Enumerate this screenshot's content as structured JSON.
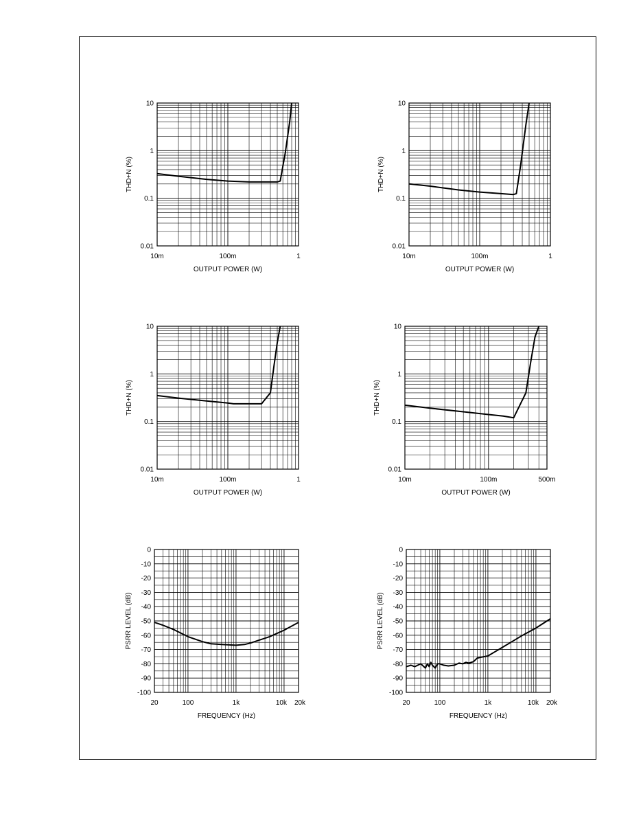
{
  "chart_data": [
    {
      "type": "line",
      "xlabel": "OUTPUT POWER (W)",
      "ylabel": "THD+N (%)",
      "x_scale": "log",
      "y_scale": "log",
      "xlim": [
        0.01,
        1
      ],
      "ylim": [
        0.01,
        10
      ],
      "x_ticks": [
        {
          "v": 0.01,
          "label": "10m"
        },
        {
          "v": 0.1,
          "label": "100m"
        },
        {
          "v": 1,
          "label": "1"
        }
      ],
      "y_ticks": [
        {
          "v": 0.01,
          "label": "0.01"
        },
        {
          "v": 0.1,
          "label": "0.1"
        },
        {
          "v": 1,
          "label": "1"
        },
        {
          "v": 10,
          "label": "10"
        }
      ],
      "grid": true,
      "series": [
        {
          "x": [
            0.01,
            0.02,
            0.05,
            0.1,
            0.2,
            0.3,
            0.5,
            0.55,
            0.65,
            0.75,
            0.8
          ],
          "y": [
            0.33,
            0.29,
            0.25,
            0.23,
            0.22,
            0.22,
            0.22,
            0.23,
            0.9,
            4.0,
            10
          ]
        }
      ]
    },
    {
      "type": "line",
      "xlabel": "OUTPUT POWER (W)",
      "ylabel": "THD+N (%)",
      "x_scale": "log",
      "y_scale": "log",
      "xlim": [
        0.01,
        1
      ],
      "ylim": [
        0.01,
        10
      ],
      "x_ticks": [
        {
          "v": 0.01,
          "label": "10m"
        },
        {
          "v": 0.1,
          "label": "100m"
        },
        {
          "v": 1,
          "label": "1"
        }
      ],
      "y_ticks": [
        {
          "v": 0.01,
          "label": "0.01"
        },
        {
          "v": 0.1,
          "label": "0.1"
        },
        {
          "v": 1,
          "label": "1"
        },
        {
          "v": 10,
          "label": "10"
        }
      ],
      "grid": true,
      "series": [
        {
          "x": [
            0.01,
            0.02,
            0.05,
            0.1,
            0.2,
            0.3,
            0.33,
            0.38,
            0.45,
            0.5
          ],
          "y": [
            0.2,
            0.18,
            0.15,
            0.135,
            0.125,
            0.12,
            0.125,
            0.5,
            3.5,
            10
          ]
        }
      ]
    },
    {
      "type": "line",
      "xlabel": "OUTPUT POWER (W)",
      "ylabel": "THD+N (%)",
      "x_scale": "log",
      "y_scale": "log",
      "xlim": [
        0.01,
        1
      ],
      "ylim": [
        0.01,
        10
      ],
      "x_ticks": [
        {
          "v": 0.01,
          "label": "10m"
        },
        {
          "v": 0.1,
          "label": "100m"
        },
        {
          "v": 1,
          "label": "1"
        }
      ],
      "y_ticks": [
        {
          "v": 0.01,
          "label": "0.01"
        },
        {
          "v": 0.1,
          "label": "0.1"
        },
        {
          "v": 1,
          "label": "1"
        },
        {
          "v": 10,
          "label": "10"
        }
      ],
      "grid": true,
      "series": [
        {
          "x": [
            0.01,
            0.02,
            0.05,
            0.1,
            0.12,
            0.2,
            0.3,
            0.4,
            0.45,
            0.5,
            0.55
          ],
          "y": [
            0.35,
            0.31,
            0.27,
            0.245,
            0.235,
            0.235,
            0.235,
            0.4,
            1.5,
            4.5,
            10
          ]
        }
      ]
    },
    {
      "type": "line",
      "xlabel": "OUTPUT POWER (W)",
      "ylabel": "THD+N (%)",
      "x_scale": "log",
      "y_scale": "log",
      "xlim": [
        0.01,
        0.5
      ],
      "ylim": [
        0.01,
        10
      ],
      "x_ticks": [
        {
          "v": 0.01,
          "label": "10m"
        },
        {
          "v": 0.1,
          "label": "100m"
        },
        {
          "v": 0.5,
          "label": "500m"
        }
      ],
      "y_ticks": [
        {
          "v": 0.01,
          "label": "0.01"
        },
        {
          "v": 0.1,
          "label": "0.1"
        },
        {
          "v": 1,
          "label": "1"
        },
        {
          "v": 10,
          "label": "10"
        }
      ],
      "grid": true,
      "series": [
        {
          "x": [
            0.01,
            0.02,
            0.05,
            0.1,
            0.15,
            0.2,
            0.28,
            0.32,
            0.36,
            0.4
          ],
          "y": [
            0.22,
            0.19,
            0.16,
            0.14,
            0.13,
            0.12,
            0.4,
            1.8,
            6,
            10
          ]
        }
      ]
    },
    {
      "type": "line",
      "xlabel": "FREQUENCY (Hz)",
      "ylabel": "PSRR LEVEL (dB)",
      "x_scale": "log",
      "y_scale": "linear",
      "xlim": [
        20,
        20000
      ],
      "ylim": [
        -100,
        0
      ],
      "x_ticks": [
        {
          "v": 20,
          "label": "20"
        },
        {
          "v": 100,
          "label": "100"
        },
        {
          "v": 1000,
          "label": "1k"
        },
        {
          "v": 10000,
          "label": "10k"
        },
        {
          "v": 20000,
          "label": "20k"
        }
      ],
      "y_ticks": [
        {
          "v": 0,
          "label": "0"
        },
        {
          "v": -10,
          "label": "-10"
        },
        {
          "v": -20,
          "label": "-20"
        },
        {
          "v": -30,
          "label": "-30"
        },
        {
          "v": -40,
          "label": "-40"
        },
        {
          "v": -50,
          "label": "-50"
        },
        {
          "v": -60,
          "label": "-60"
        },
        {
          "v": -70,
          "label": "-70"
        },
        {
          "v": -80,
          "label": "-80"
        },
        {
          "v": -90,
          "label": "-90"
        },
        {
          "v": -100,
          "label": "-100"
        }
      ],
      "grid": true,
      "series": [
        {
          "x": [
            20,
            30,
            50,
            100,
            200,
            300,
            500,
            1000,
            1500,
            2000,
            3000,
            5000,
            10000,
            20000
          ],
          "y": [
            -51,
            -53,
            -56,
            -61,
            -64.5,
            -66,
            -66.5,
            -67,
            -66.5,
            -65.5,
            -63.5,
            -61,
            -56.5,
            -51
          ]
        }
      ]
    },
    {
      "type": "line",
      "xlabel": "FREQUENCY (Hz)",
      "ylabel": "PSRR LEVEL (dB)",
      "x_scale": "log",
      "y_scale": "linear",
      "xlim": [
        20,
        20000
      ],
      "ylim": [
        -100,
        0
      ],
      "x_ticks": [
        {
          "v": 20,
          "label": "20"
        },
        {
          "v": 100,
          "label": "100"
        },
        {
          "v": 1000,
          "label": "1k"
        },
        {
          "v": 10000,
          "label": "10k"
        },
        {
          "v": 20000,
          "label": "20k"
        }
      ],
      "y_ticks": [
        {
          "v": 0,
          "label": "0"
        },
        {
          "v": -10,
          "label": "-10"
        },
        {
          "v": -20,
          "label": "-20"
        },
        {
          "v": -30,
          "label": "-30"
        },
        {
          "v": -40,
          "label": "-40"
        },
        {
          "v": -50,
          "label": "-50"
        },
        {
          "v": -60,
          "label": "-60"
        },
        {
          "v": -70,
          "label": "-70"
        },
        {
          "v": -80,
          "label": "-80"
        },
        {
          "v": -90,
          "label": "-90"
        },
        {
          "v": -100,
          "label": "-100"
        }
      ],
      "grid": true,
      "series": [
        {
          "x": [
            20,
            25,
            30,
            40,
            50,
            55,
            60,
            65,
            70,
            80,
            90,
            100,
            120,
            150,
            200,
            250,
            300,
            350,
            400,
            500,
            600,
            700,
            1000,
            1500,
            2000,
            3000,
            5000,
            10000,
            20000
          ],
          "y": [
            -82,
            -81,
            -82,
            -80,
            -83,
            -80,
            -82,
            -79,
            -81,
            -83,
            -80,
            -80,
            -81,
            -81.5,
            -81,
            -79.5,
            -80,
            -79,
            -79.5,
            -78.5,
            -76,
            -75.5,
            -74.5,
            -71,
            -68.5,
            -65,
            -60.5,
            -55,
            -48.5
          ]
        }
      ]
    }
  ]
}
